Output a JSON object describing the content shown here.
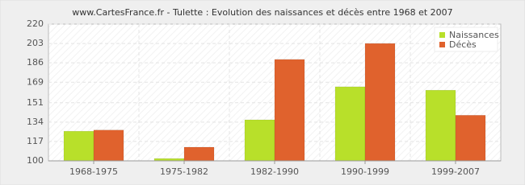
{
  "chart_data": {
    "type": "bar",
    "title": "www.CartesFrance.fr - Tulette : Evolution des naissances et décès entre 1968 et 2007",
    "categories": [
      "1968-1975",
      "1975-1982",
      "1982-1990",
      "1990-1999",
      "1999-2007"
    ],
    "series": [
      {
        "name": "Naissances",
        "color": "#b8e02a",
        "values": [
          126,
          102,
          136,
          165,
          162
        ]
      },
      {
        "name": "Décès",
        "color": "#e0622d",
        "values": [
          127,
          112,
          189,
          203,
          140
        ]
      }
    ],
    "ylim": [
      100,
      220
    ],
    "yticks": [
      100,
      117,
      134,
      151,
      169,
      186,
      203,
      220
    ],
    "grid": true,
    "legend": "top-right"
  }
}
